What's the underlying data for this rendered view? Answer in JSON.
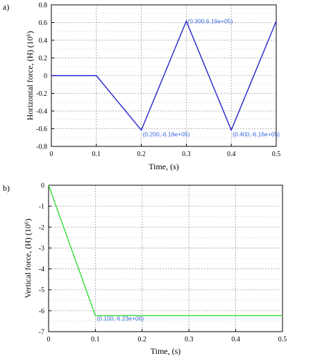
{
  "chart_data": [
    {
      "panel_label": "a)",
      "type": "line",
      "xlabel": "Time, (s)",
      "ylabel": "Horizontal force, (H) (10⁶)",
      "xlim": [
        0,
        0.5
      ],
      "ylim": [
        -0.8,
        0.8
      ],
      "x_ticks": [
        "0",
        "0.1",
        "0.2",
        "0.3",
        "0.4",
        "0.5"
      ],
      "y_ticks": [
        "-0.8",
        "-0.6",
        "-0.4",
        "-0.2",
        "0",
        "0.2",
        "0.4",
        "0.6",
        "0.8"
      ],
      "grid": true,
      "series": [
        {
          "color": "#2222cc",
          "x": [
            0,
            0.1,
            0.2,
            0.3,
            0.4,
            0.5
          ],
          "y": [
            0,
            0,
            -0.616,
            0.616,
            -0.616,
            0.616
          ]
        }
      ],
      "annotations": [
        {
          "text": "(0.200,-6.16e+05)",
          "x": 0.2,
          "y": -0.616,
          "color": "#3366dd"
        },
        {
          "text": "(0.300,6.16e+05)",
          "x": 0.3,
          "y": 0.616,
          "color": "#3366dd"
        },
        {
          "text": "(0.400,-6.16e+05)",
          "x": 0.4,
          "y": -0.616,
          "color": "#3366dd"
        }
      ]
    },
    {
      "panel_label": "b)",
      "type": "line",
      "xlabel": "Time, (s)",
      "ylabel": "Vertical force, (H) (10⁶)",
      "xlim": [
        0,
        0.5
      ],
      "ylim": [
        -7,
        0
      ],
      "x_ticks": [
        "0",
        "0.1",
        "0.2",
        "0.3",
        "0.4",
        "0.5"
      ],
      "y_ticks": [
        "-7",
        "-6",
        "-5",
        "-4",
        "-3",
        "-2",
        "-1",
        "0"
      ],
      "grid": true,
      "series": [
        {
          "color": "#33dd33",
          "x": [
            0,
            0.1,
            0.5
          ],
          "y": [
            0,
            -6.23,
            -6.23
          ]
        }
      ],
      "annotations": [
        {
          "text": "(0.100,-6.23e+06)",
          "x": 0.1,
          "y": -6.23,
          "color": "#3366dd"
        }
      ]
    }
  ]
}
